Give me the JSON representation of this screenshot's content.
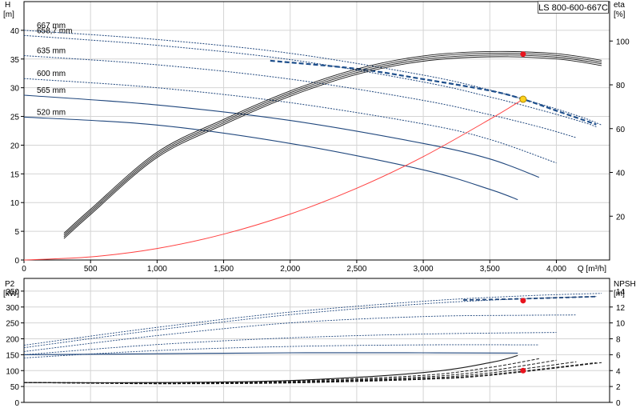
{
  "model": "LS 800-600-667C",
  "chart_data": [
    {
      "type": "line",
      "title": "",
      "xlabel": "Q [m³/h]",
      "ylabel_left": [
        "H",
        "[m]"
      ],
      "ylabel_right": [
        "eta",
        "[%]"
      ],
      "xlim": [
        0,
        4400
      ],
      "ylim_left": [
        0,
        45
      ],
      "ylim_right": [
        0,
        118
      ],
      "xticks": [
        0,
        500,
        1000,
        1500,
        2000,
        2500,
        3000,
        3500,
        4000
      ],
      "xtick_labels": [
        "0",
        "500",
        "1,000",
        "1,500",
        "2,000",
        "2,500",
        "3,000",
        "3,500",
        "4,000"
      ],
      "yticks_left": [
        0,
        5,
        10,
        15,
        20,
        25,
        30,
        35,
        40
      ],
      "yticks_right": [
        20,
        40,
        60,
        80,
        100
      ],
      "grid": true,
      "head_curves": [
        {
          "label": "667 mm",
          "style": "dotted",
          "x": [
            0,
            1000,
            2000,
            3000,
            3500,
            3900,
            4200,
            4340
          ],
          "y": [
            40.0,
            38.4,
            36.0,
            32.2,
            29.6,
            27.0,
            24.8,
            23.5
          ]
        },
        {
          "label": "658,7 mm",
          "style": "dotted",
          "x": [
            0,
            1000,
            2000,
            3000,
            3500,
            3900,
            4200,
            4300
          ],
          "y": [
            39.1,
            37.4,
            34.9,
            31.0,
            28.4,
            26.0,
            24.0,
            23.2
          ]
        },
        {
          "label": "635 mm",
          "style": "dotted",
          "x": [
            0,
            1000,
            2000,
            3000,
            3500,
            3900,
            4150
          ],
          "y": [
            35.6,
            34.0,
            31.5,
            27.8,
            25.3,
            23.0,
            21.3
          ]
        },
        {
          "label": "600 mm",
          "style": "dotted",
          "x": [
            0,
            1000,
            2000,
            3000,
            3500,
            4000
          ],
          "y": [
            31.6,
            30.0,
            27.4,
            23.7,
            21.0,
            16.9
          ]
        },
        {
          "label": "565 mm",
          "style": "solid",
          "x": [
            0,
            1000,
            2000,
            3000,
            3500,
            3870
          ],
          "y": [
            28.7,
            27.0,
            24.3,
            20.3,
            17.6,
            14.4
          ]
        },
        {
          "label": "520 mm",
          "style": "solid",
          "x": [
            0,
            1000,
            2000,
            3000,
            3500,
            3710
          ],
          "y": [
            24.9,
            23.5,
            20.3,
            15.7,
            12.3,
            10.5
          ]
        }
      ],
      "operating_head_curve": {
        "x": [
          1850,
          2500,
          3000,
          3500,
          3750,
          4000,
          4300
        ],
        "y": [
          34.7,
          33.3,
          31.5,
          29.5,
          28.0,
          26.0,
          23.6
        ]
      },
      "system_curve": {
        "x": [
          0,
          500,
          1000,
          1500,
          2000,
          2500,
          3000,
          3500,
          3750
        ],
        "y": [
          0,
          0.55,
          2.0,
          4.5,
          8.0,
          12.5,
          18.0,
          24.5,
          28.0
        ]
      },
      "efficiency_curve": {
        "x": [
          300,
          500,
          1000,
          1500,
          2000,
          2500,
          3000,
          3500,
          4000,
          4340
        ],
        "y": [
          11,
          22,
          48,
          63,
          76,
          86,
          92,
          94,
          93,
          90
        ]
      },
      "duty_point": {
        "x": 3750,
        "y": 28.0
      },
      "efficiency_point": {
        "x": 3750,
        "y": 94
      }
    },
    {
      "type": "line",
      "title": "",
      "xlabel": "",
      "ylabel_left": [
        "P2",
        "[kW]"
      ],
      "ylabel_right": [
        "NPSH",
        "[m]"
      ],
      "xlim": [
        0,
        4400
      ],
      "ylim_left": [
        0,
        390
      ],
      "ylim_right": [
        0,
        15.6
      ],
      "yticks_left": [
        0,
        50,
        100,
        150,
        200,
        250,
        300,
        350
      ],
      "yticks_right": [
        0,
        2,
        4,
        6,
        8,
        10,
        12,
        14
      ],
      "grid": true,
      "power_curves": [
        {
          "label": "667 mm",
          "x": [
            0,
            1000,
            2000,
            3000,
            3750,
            4340
          ],
          "y": [
            180,
            236,
            284,
            318,
            335,
            343
          ]
        },
        {
          "label": "658,7 mm",
          "x": [
            0,
            1000,
            2000,
            3000,
            3750,
            4300
          ],
          "y": [
            172,
            228,
            276,
            310,
            326,
            333
          ]
        },
        {
          "label": "635 mm",
          "x": [
            0,
            1000,
            2000,
            3000,
            3750,
            4150
          ],
          "y": [
            160,
            210,
            250,
            270,
            274,
            275
          ]
        },
        {
          "label": "600 mm",
          "x": [
            0,
            1000,
            2000,
            3000,
            4000
          ],
          "y": [
            150,
            182,
            203,
            215,
            220
          ]
        },
        {
          "label": "565 mm",
          "x": [
            0,
            1000,
            2000,
            3000,
            3870
          ],
          "y": [
            140,
            163,
            176,
            181,
            181
          ]
        },
        {
          "label": "520 mm",
          "x": [
            0,
            1000,
            2000,
            3000,
            3710
          ],
          "y": [
            150,
            153,
            156,
            156,
            155
          ]
        }
      ],
      "npsh_curves": [
        {
          "x": [
            0,
            1000,
            2000,
            3000,
            3500,
            3710
          ],
          "y": [
            2.5,
            2.5,
            2.75,
            3.75,
            5.0,
            5.9
          ]
        },
        {
          "x": [
            0,
            1000,
            2000,
            3000,
            3500,
            3870
          ],
          "y": [
            2.5,
            2.5,
            2.7,
            3.4,
            4.4,
            5.5
          ]
        },
        {
          "x": [
            0,
            1000,
            2000,
            3000,
            3500,
            4000
          ],
          "y": [
            2.5,
            2.45,
            2.6,
            3.2,
            4.0,
            5.3
          ]
        },
        {
          "x": [
            0,
            1000,
            2000,
            3000,
            3500,
            4150
          ],
          "y": [
            2.5,
            2.4,
            2.55,
            3.05,
            3.7,
            5.1
          ]
        },
        {
          "x": [
            0,
            1000,
            2000,
            3000,
            3500,
            4300
          ],
          "y": [
            2.5,
            2.4,
            2.5,
            2.95,
            3.5,
            5.0
          ]
        },
        {
          "x": [
            0,
            1000,
            2000,
            3000,
            3500,
            4340
          ],
          "y": [
            2.5,
            2.35,
            2.45,
            2.9,
            3.4,
            5.0
          ]
        }
      ],
      "power_point": {
        "x": 3750,
        "y": 320
      },
      "npsh_point": {
        "x": 3750,
        "y": 4.0
      }
    }
  ],
  "colors": {
    "grid": "#d4d4d4",
    "axis": "#000000",
    "head_curve": "#20477d",
    "operating_curve": "#1e4f8c",
    "system_curve": "#ff4040",
    "efficiency": "#1a1a1a",
    "npsh": "#1a1a1a",
    "duty_marker": "#ffd21e",
    "point_marker": "#e8141e"
  }
}
